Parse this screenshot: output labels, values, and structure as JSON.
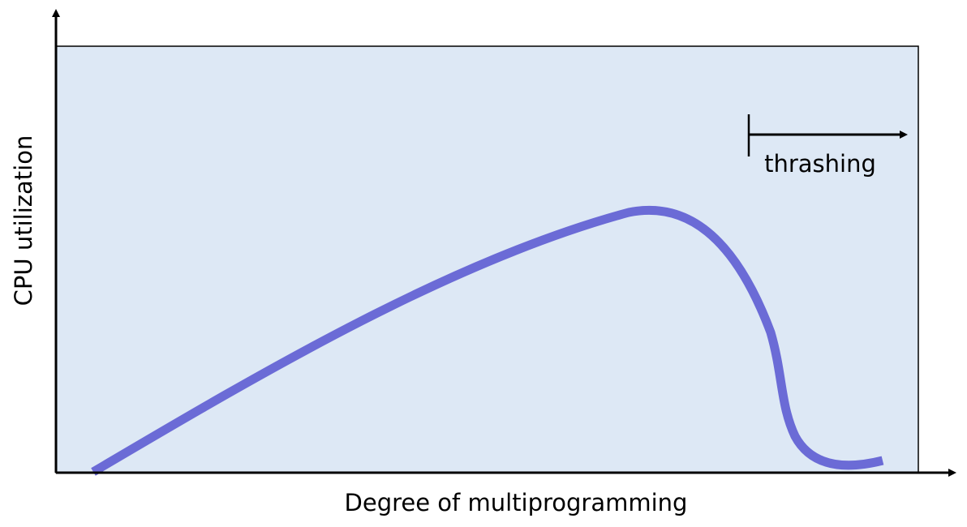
{
  "x_axis_label": "Degree of multiprogramming",
  "y_axis_label": "CPU utilization",
  "annotation": "thrashing",
  "colors": {
    "plot_background": "#dde8f5",
    "curve": "#6b6bd6",
    "axis": "#000000"
  }
}
